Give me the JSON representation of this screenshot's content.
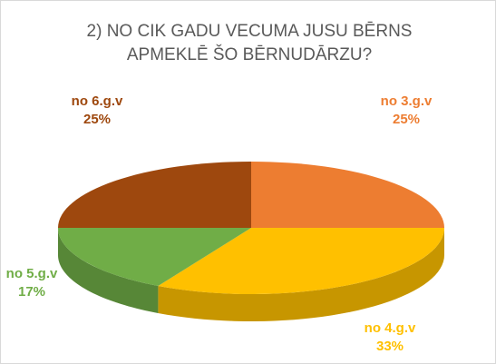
{
  "chart_data": {
    "type": "pie",
    "title": "2) NO CIK GADU VECUMA JUSU BĒRNS APMEKLĒ ŠO BĒRNUDĀRZU?",
    "categories": [
      "no 3.g.v",
      "no 4.g.v",
      "no 5.g.v",
      "no 6.g.v"
    ],
    "values": [
      25,
      33,
      17,
      25
    ],
    "value_labels": [
      "25%",
      "33%",
      "17%",
      "25%"
    ],
    "colors": [
      "#ED7D31",
      "#FFC000",
      "#70AD47",
      "#9E480E"
    ]
  }
}
